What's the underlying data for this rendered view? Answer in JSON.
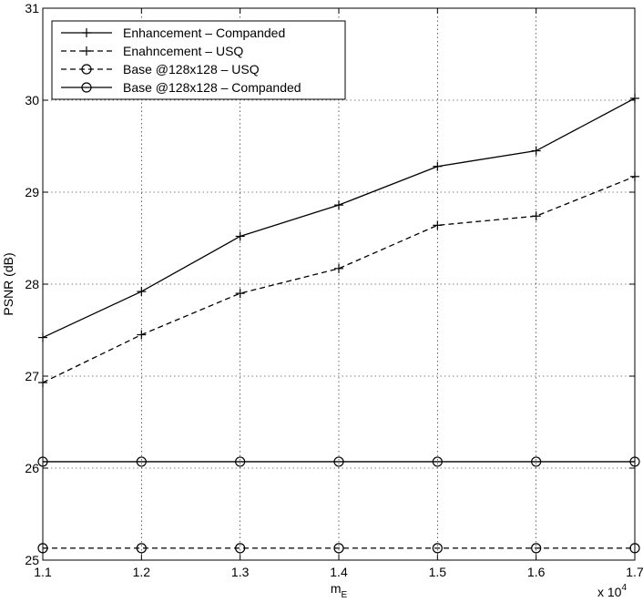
{
  "chart_data": {
    "type": "line",
    "x": [
      1.1,
      1.2,
      1.3,
      1.4,
      1.5,
      1.6,
      1.7
    ],
    "x_multiplier_label": "x 10",
    "x_multiplier_exponent": "4",
    "xlabel_main": "m",
    "xlabel_sub": "E",
    "ylabel": "PSNR (dB)",
    "xlim": [
      1.1,
      1.7
    ],
    "ylim": [
      25,
      31
    ],
    "xticks": [
      "1.1",
      "1.2",
      "1.3",
      "1.4",
      "1.5",
      "1.6",
      "1.7"
    ],
    "yticks": [
      "25",
      "26",
      "27",
      "28",
      "29",
      "30",
      "31"
    ],
    "grid": true,
    "legend_position": "top-left",
    "series": [
      {
        "name": "Enhancement – Companded",
        "values": [
          27.42,
          27.92,
          28.52,
          28.86,
          29.28,
          29.45,
          30.02
        ],
        "line": "solid",
        "marker": "plus",
        "color": "#000000"
      },
      {
        "name": "Enahncement – USQ",
        "values": [
          26.93,
          27.45,
          27.9,
          28.17,
          28.64,
          28.74,
          29.17
        ],
        "line": "dashed",
        "marker": "plus",
        "color": "#000000"
      },
      {
        "name": "Base @128x128 – USQ",
        "values": [
          25.13,
          25.13,
          25.13,
          25.13,
          25.13,
          25.13,
          25.13
        ],
        "line": "dashed",
        "marker": "circle",
        "color": "#000000"
      },
      {
        "name": "Base @128x128 – Companded",
        "values": [
          26.07,
          26.07,
          26.07,
          26.07,
          26.07,
          26.07,
          26.07
        ],
        "line": "solid",
        "marker": "circle",
        "color": "#000000"
      }
    ]
  }
}
